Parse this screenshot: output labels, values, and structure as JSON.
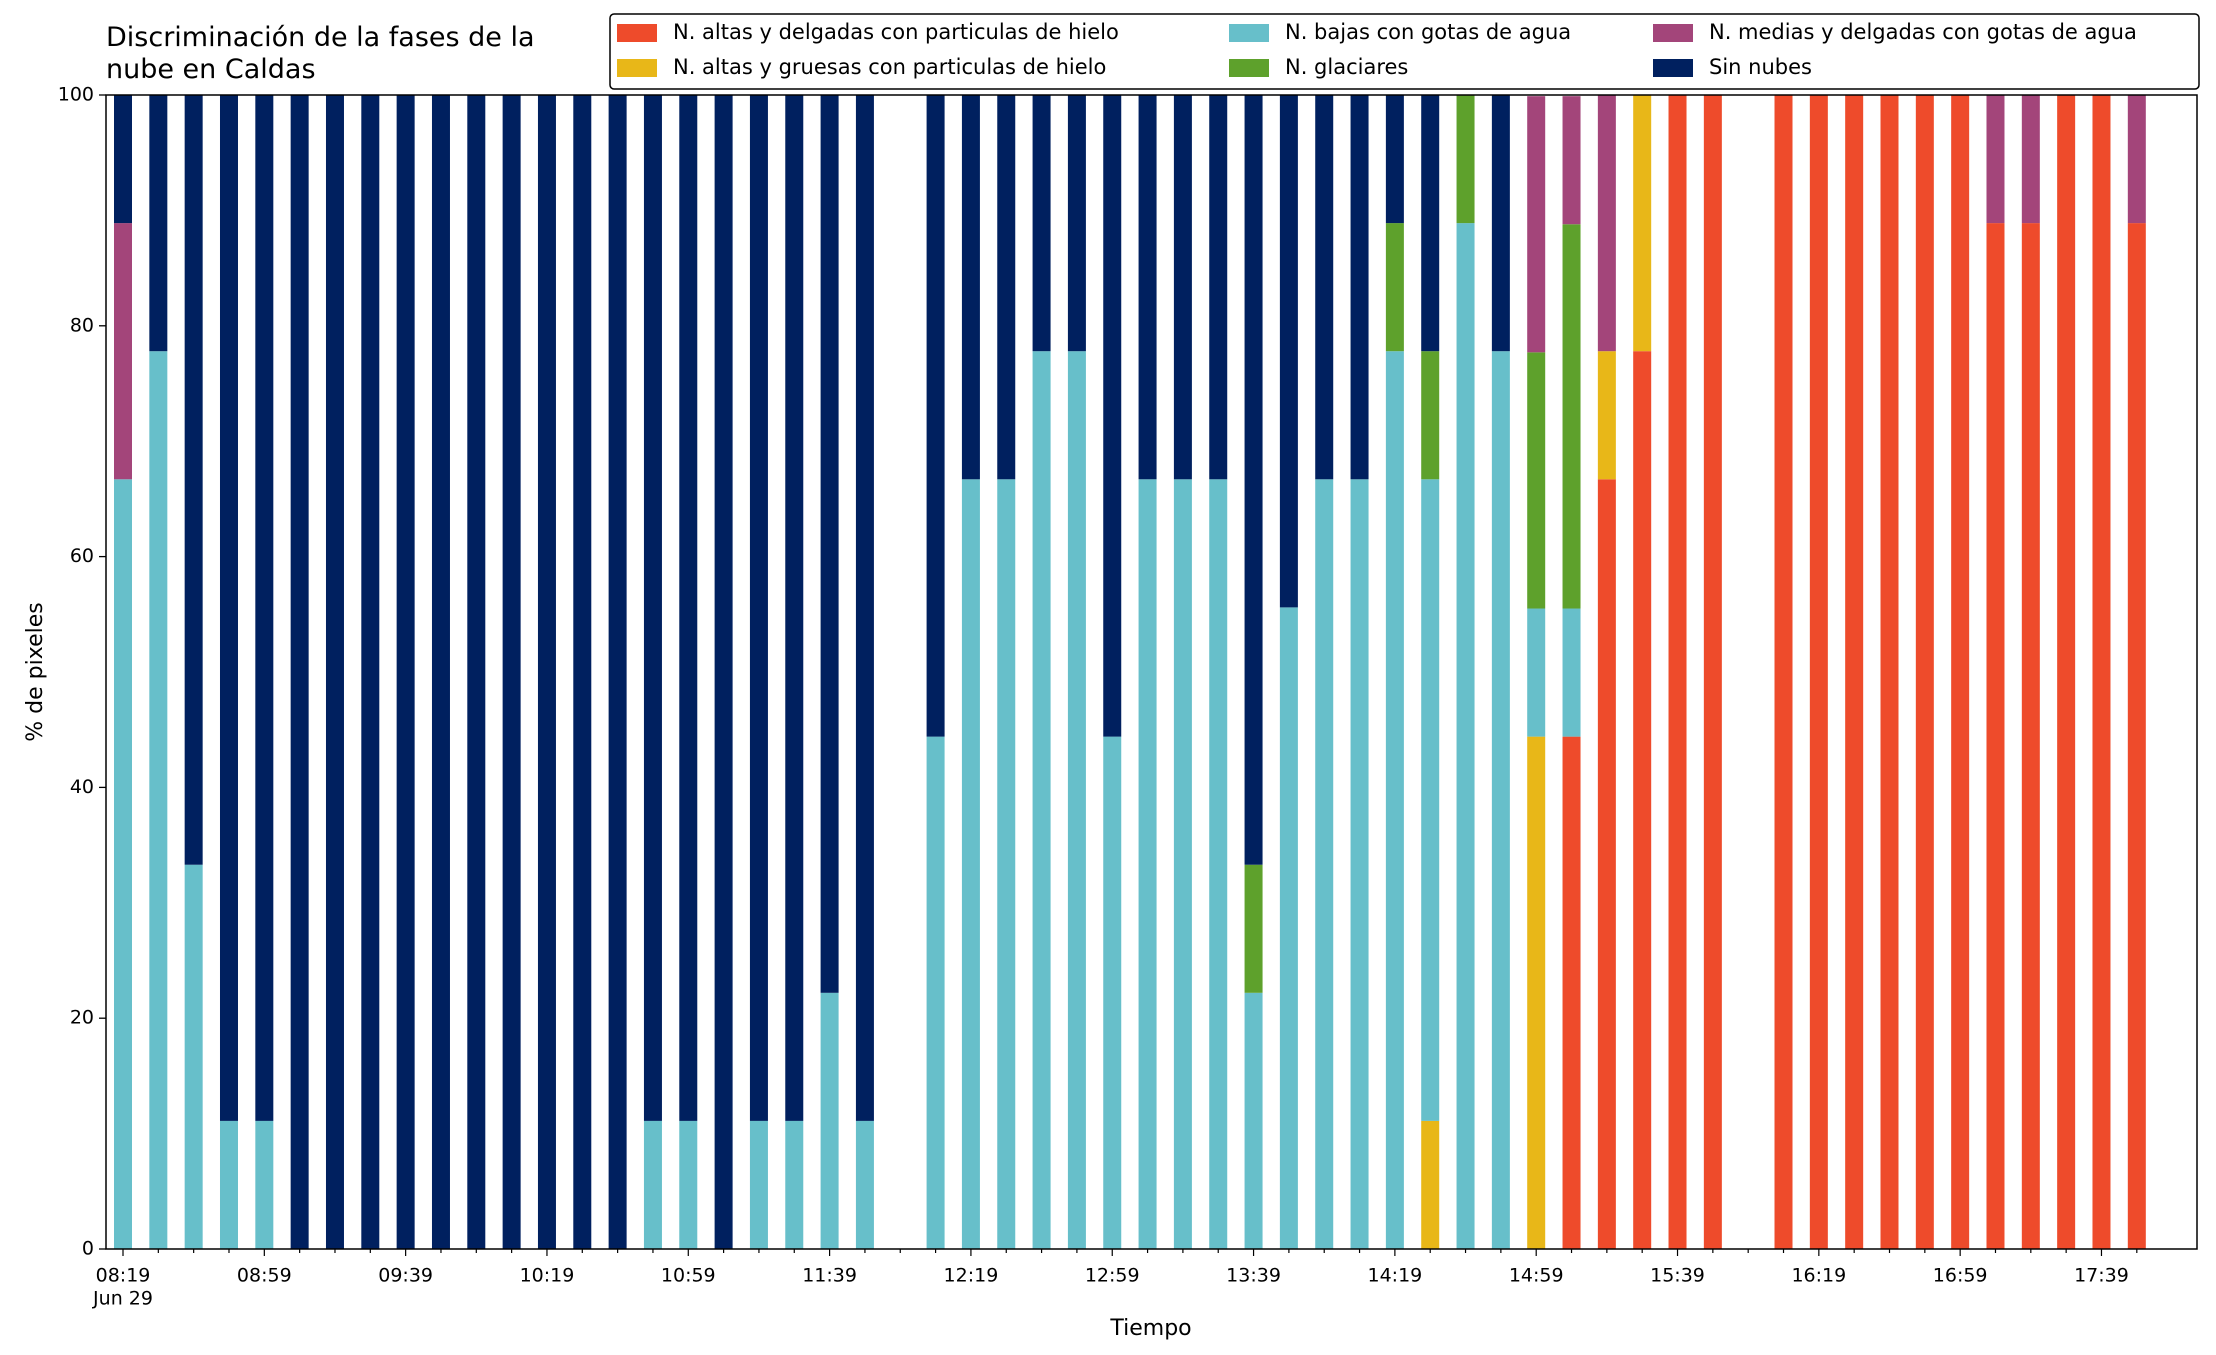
{
  "chart_data": {
    "type": "stacked_bar",
    "title": "Discriminación de la fases de la\nnube en Caldas",
    "xlabel": "Tiempo",
    "ylabel": "% de pixeles",
    "date_label": "Jun 29",
    "categories": [
      "08:19",
      null,
      null,
      null,
      "08:59",
      null,
      null,
      null,
      "09:39",
      null,
      null,
      null,
      "10:19",
      null,
      null,
      null,
      "10:59",
      null,
      null,
      null,
      "11:39",
      null,
      null,
      null,
      "12:19",
      null,
      null,
      null,
      "12:59",
      null,
      null,
      null,
      "13:39",
      null,
      null,
      null,
      "14:19",
      null,
      null,
      null,
      "14:59",
      null,
      null,
      null,
      "15:39",
      null,
      null,
      null,
      "16:19",
      null,
      null,
      null,
      "16:59",
      null,
      null,
      null,
      "17:39",
      null
    ],
    "ylim": [
      0,
      100
    ],
    "yticks": [
      0,
      20,
      40,
      60,
      80,
      100
    ],
    "grid": false,
    "legend": "top",
    "series": [
      {
        "name": "N. altas y delgadas con particulas de hielo",
        "color": "#ee4b2b",
        "values": [
          0,
          0,
          0,
          0,
          0,
          0,
          0,
          0,
          0,
          0,
          0,
          0,
          0,
          0,
          0,
          0,
          0,
          0,
          0,
          0,
          0,
          0,
          null,
          0,
          0,
          0,
          0,
          0,
          0,
          0,
          0,
          0,
          0,
          0,
          0,
          0,
          0,
          0,
          0,
          0,
          0,
          44.4,
          66.7,
          77.8,
          100,
          100,
          null,
          100,
          100,
          100,
          100,
          100,
          100,
          88.9,
          88.9,
          100,
          100,
          88.9
        ]
      },
      {
        "name": "N. altas y gruesas con particulas de hielo",
        "color": "#e8b718",
        "values": [
          0,
          0,
          0,
          0,
          0,
          0,
          0,
          0,
          0,
          0,
          0,
          0,
          0,
          0,
          0,
          0,
          0,
          0,
          0,
          0,
          0,
          0,
          null,
          0,
          0,
          0,
          0,
          0,
          0,
          0,
          0,
          0,
          0,
          0,
          0,
          0,
          0,
          11.1,
          0,
          0,
          44.4,
          0,
          11.1,
          22.2,
          0,
          0,
          null,
          0,
          0,
          0,
          0,
          0,
          0,
          0,
          0,
          0,
          0,
          0
        ]
      },
      {
        "name": "N. bajas con gotas de agua",
        "color": "#67bfca",
        "values": [
          66.7,
          77.8,
          33.3,
          11.1,
          11.1,
          0,
          0,
          0,
          0,
          0,
          0,
          0,
          0,
          0,
          0,
          11.1,
          11.1,
          0,
          11.1,
          11.1,
          22.2,
          11.1,
          null,
          44.4,
          66.7,
          66.7,
          77.8,
          77.8,
          44.4,
          66.7,
          66.7,
          66.7,
          22.2,
          55.6,
          66.7,
          66.7,
          77.8,
          55.6,
          88.9,
          77.8,
          11.1,
          11.1,
          0,
          0,
          0,
          0,
          null,
          0,
          0,
          0,
          0,
          0,
          0,
          0,
          0,
          0,
          0,
          0
        ]
      },
      {
        "name": "N. glaciares",
        "color": "#5ea12c",
        "values": [
          0,
          0,
          0,
          0,
          0,
          0,
          0,
          0,
          0,
          0,
          0,
          0,
          0,
          0,
          0,
          0,
          0,
          0,
          0,
          0,
          0,
          0,
          null,
          0,
          0,
          0,
          0,
          0,
          0,
          0,
          0,
          0,
          11.1,
          0,
          0,
          0,
          11.1,
          11.1,
          11.1,
          0,
          22.2,
          33.3,
          0,
          0,
          0,
          0,
          null,
          0,
          0,
          0,
          0,
          0,
          0,
          0,
          0,
          0,
          0,
          0
        ]
      },
      {
        "name": "N. medias y delgadas con gotas de agua",
        "color": "#a3457a",
        "values": [
          22.2,
          0,
          0,
          0,
          0,
          0,
          0,
          0,
          0,
          0,
          0,
          0,
          0,
          0,
          0,
          0,
          0,
          0,
          0,
          0,
          0,
          0,
          null,
          0,
          0,
          0,
          0,
          0,
          0,
          0,
          0,
          0,
          0,
          0,
          0,
          0,
          0,
          0,
          0,
          0,
          22.2,
          11.1,
          22.2,
          0,
          0,
          0,
          null,
          0,
          0,
          0,
          0,
          0,
          0,
          11.1,
          11.1,
          0,
          0,
          11.1
        ]
      },
      {
        "name": "Sin nubes",
        "color": "#00205f",
        "values": [
          11.1,
          22.2,
          66.7,
          88.9,
          88.9,
          100,
          100,
          100,
          100,
          100,
          100,
          100,
          100,
          100,
          100,
          88.9,
          88.9,
          100,
          88.9,
          88.9,
          77.8,
          88.9,
          null,
          55.6,
          33.3,
          33.3,
          22.2,
          22.2,
          55.6,
          33.3,
          33.3,
          33.3,
          66.7,
          44.4,
          33.3,
          33.3,
          11.1,
          22.2,
          0,
          22.2,
          0,
          0,
          0,
          0,
          0,
          0,
          null,
          0,
          0,
          0,
          0,
          0,
          0,
          0,
          0,
          0,
          0,
          0
        ]
      }
    ]
  }
}
